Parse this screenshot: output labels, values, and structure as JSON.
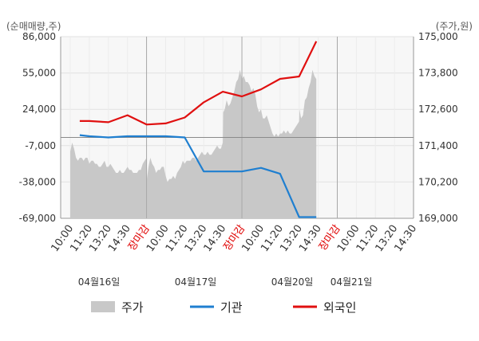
{
  "chart_data": {
    "type": "line",
    "left_axis_label": "(순매매량,주)",
    "right_axis_label": "(주가,원)",
    "left_ticks": [
      86000,
      55000,
      24000,
      -7000,
      -38000,
      -69000
    ],
    "left_tick_labels": [
      "86,000",
      "55,000",
      "24,000",
      "-7,000",
      "-38,000",
      "-69,000"
    ],
    "left_range": [
      -69000,
      86000
    ],
    "right_ticks": [
      175000,
      173800,
      172600,
      171400,
      170200,
      169000
    ],
    "right_tick_labels": [
      "175,000",
      "173,800",
      "172,600",
      "171,400",
      "170,200",
      "169,000"
    ],
    "right_range": [
      169000,
      175000
    ],
    "x_tick_labels": [
      "10:00",
      "11:20",
      "13:20",
      "14:30",
      "장마감",
      "10:00",
      "11:20",
      "13:20",
      "14:30",
      "장마감",
      "10:00",
      "11:20",
      "13:20",
      "14:30",
      "장마감",
      "10:00",
      "11:20",
      "13:20",
      "14:30"
    ],
    "x_tick_close_marker": "장마감",
    "dates": [
      "04월16일",
      "04월17일",
      "04월20일",
      "04월21일"
    ],
    "grid": true,
    "legend_position": "bottom",
    "series": [
      {
        "name": "주가",
        "kind": "area",
        "axis": "right",
        "color": "#c8c8c8",
        "x": [
          0,
          0.1,
          0.2,
          0.3,
          0.4,
          0.5,
          0.6,
          0.7,
          0.8,
          0.9,
          1.0,
          1.1,
          1.2,
          1.3,
          1.4,
          1.5,
          1.6,
          1.7,
          1.8,
          1.9,
          2.0,
          2.1,
          2.2,
          2.3,
          2.4,
          2.5,
          2.6,
          2.7,
          2.8,
          2.9,
          3.0,
          3.1,
          3.2,
          3.3,
          3.4,
          3.5,
          3.6,
          3.7,
          3.8,
          3.9,
          4.0,
          4.02,
          4.1,
          4.2,
          4.3,
          4.4,
          4.5,
          4.6,
          4.7,
          4.8,
          4.9,
          5.0,
          5.1,
          5.2,
          5.3,
          5.4,
          5.5,
          5.6,
          5.7,
          5.8,
          5.9,
          6.0,
          6.1,
          6.2,
          6.3,
          6.4,
          6.5,
          6.6,
          6.7,
          6.8,
          6.9,
          7.0,
          7.1,
          7.2,
          7.3,
          7.4,
          7.5,
          7.6,
          7.7,
          7.8,
          7.9,
          8.0,
          8.02,
          8.1,
          8.2,
          8.3,
          8.4,
          8.5,
          8.6,
          8.7,
          8.8,
          8.9,
          9.0,
          9.1,
          9.2,
          9.3,
          9.4,
          9.5,
          9.6,
          9.7,
          9.8,
          9.9,
          10.0,
          10.1,
          10.2,
          10.3,
          10.4,
          10.5,
          10.6,
          10.7,
          10.8,
          10.9,
          11.0,
          11.1,
          11.2,
          11.3,
          11.4,
          11.5,
          11.6,
          11.7,
          11.8,
          11.9,
          12.0,
          12.02,
          12.1,
          12.2,
          12.3,
          12.4,
          12.5,
          12.6,
          12.7,
          12.8,
          12.9
        ],
        "values": [
          171200,
          171500,
          171300,
          171000,
          170900,
          171000,
          171000,
          170900,
          171000,
          171000,
          170800,
          170900,
          170900,
          170800,
          170800,
          170700,
          170700,
          170800,
          170900,
          170700,
          170700,
          170800,
          170700,
          170600,
          170500,
          170500,
          170600,
          170500,
          170500,
          170600,
          170700,
          170600,
          170600,
          170500,
          170500,
          170500,
          170600,
          170600,
          170800,
          170900,
          171000,
          170300,
          170700,
          171000,
          170800,
          170700,
          170500,
          170600,
          170600,
          170700,
          170700,
          170400,
          170200,
          170300,
          170300,
          170400,
          170300,
          170500,
          170600,
          170700,
          170900,
          170800,
          170900,
          170900,
          170900,
          171000,
          171000,
          170900,
          171000,
          171100,
          171200,
          171100,
          171100,
          171200,
          171100,
          171100,
          171200,
          171300,
          171400,
          171300,
          171300,
          171500,
          172500,
          172600,
          172900,
          172700,
          172800,
          173000,
          173200,
          173500,
          173600,
          173900,
          173600,
          173700,
          173500,
          173500,
          173400,
          173200,
          173300,
          173100,
          172700,
          172500,
          172600,
          172300,
          172300,
          172400,
          172200,
          172000,
          171800,
          171700,
          171800,
          171700,
          171800,
          171800,
          171900,
          171800,
          171900,
          171800,
          171800,
          171900,
          172000,
          172100,
          172200,
          172600,
          172300,
          172400,
          172900,
          173000,
          173300,
          173500,
          173900,
          173700,
          173600
        ]
      },
      {
        "name": "기관",
        "kind": "line",
        "axis": "left",
        "color": "#1f7fd0",
        "x": [
          0.5,
          1,
          2,
          3,
          4,
          5,
          6,
          7,
          8,
          9,
          10,
          11,
          12,
          12.9
        ],
        "values": [
          2000,
          1000,
          0,
          1000,
          1000,
          1000,
          0,
          -29000,
          -29000,
          -29000,
          -26000,
          -31000,
          -68000,
          -68000
        ]
      },
      {
        "name": "외국인",
        "kind": "line",
        "axis": "left",
        "color": "#e01010",
        "x": [
          0.5,
          1,
          2,
          3,
          4,
          5,
          6,
          7,
          8,
          9,
          10,
          11,
          12,
          12.9
        ],
        "values": [
          14000,
          14000,
          13000,
          19000,
          11000,
          12000,
          17000,
          30000,
          39000,
          35000,
          41000,
          50000,
          52000,
          82000
        ]
      }
    ]
  }
}
